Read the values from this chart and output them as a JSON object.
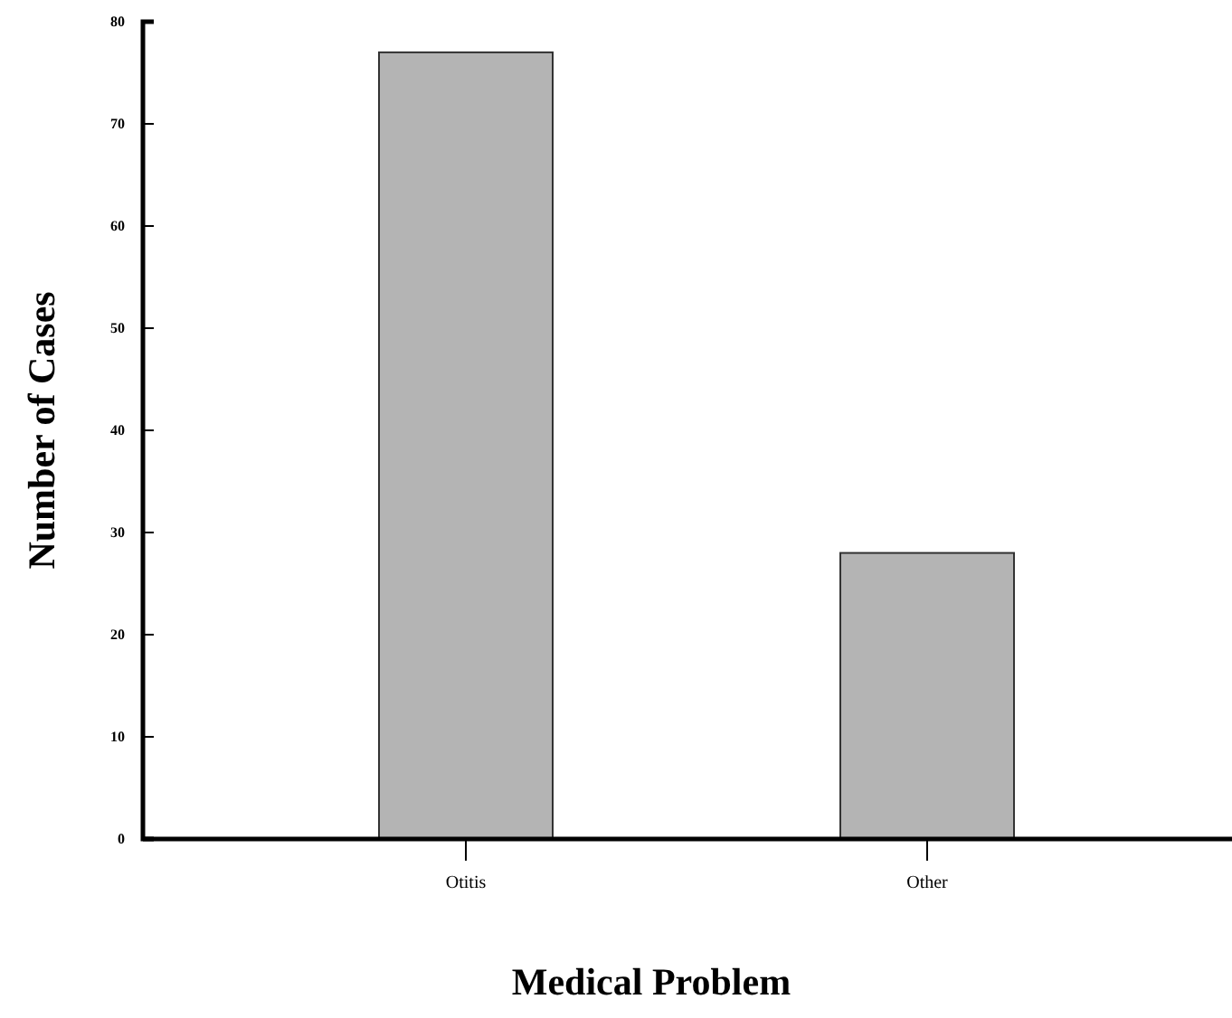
{
  "chart_data": {
    "type": "bar",
    "xlabel": "Medical Problem",
    "ylabel": "Number of Cases",
    "categories": [
      "Otitis",
      "Other"
    ],
    "values": [
      77,
      28
    ],
    "color": "#b4b4b4",
    "ylim": [
      0,
      80
    ],
    "yticks": [
      0,
      10,
      20,
      30,
      40,
      50,
      60,
      70,
      80
    ],
    "grid": false
  }
}
